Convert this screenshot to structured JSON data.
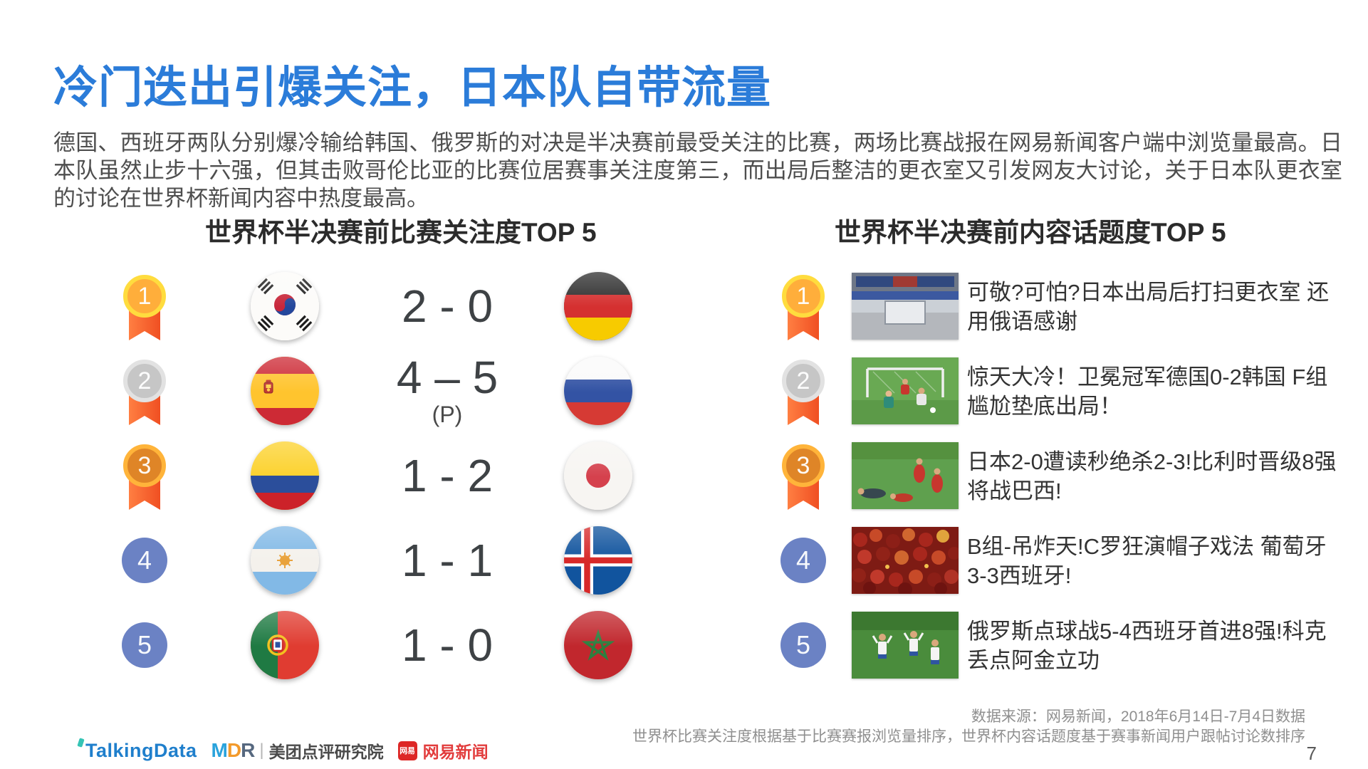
{
  "page": {
    "title": "冷门迭出引爆关注，日本队自带流量",
    "body": "德国、西班牙两队分别爆冷输给韩国、俄罗斯的对决是半决赛前最受关注的比赛，两场比赛战报在网易新闻客户端中浏览量最高。日本队虽然止步十六强，但其击败哥伦比亚的比赛位居赛事关注度第三，而出局后整洁的更衣室又引发网友大讨论，关于日本队更衣室的讨论在世界杯新闻内容中热度最高。",
    "page_number": "7"
  },
  "left_section": {
    "title": "世界杯半决赛前比赛关注度TOP 5",
    "rows": [
      {
        "rank": "1",
        "rank_style": "gold-medal",
        "home_flag": "south-korea-flag",
        "score": "2 - 0",
        "score_note": "",
        "away_flag": "germany-flag"
      },
      {
        "rank": "2",
        "rank_style": "silver-medal",
        "home_flag": "spain-flag",
        "score": "4 – 5",
        "score_note": "(P)",
        "away_flag": "russia-flag"
      },
      {
        "rank": "3",
        "rank_style": "bronze-medal",
        "home_flag": "colombia-flag",
        "score": "1 - 2",
        "score_note": "",
        "away_flag": "japan-flag"
      },
      {
        "rank": "4",
        "rank_style": "blue-circle",
        "home_flag": "argentina-flag",
        "score": "1 - 1",
        "score_note": "",
        "away_flag": "iceland-flag"
      },
      {
        "rank": "5",
        "rank_style": "blue-circle",
        "home_flag": "portugal-flag",
        "score": "1 - 0",
        "score_note": "",
        "away_flag": "morocco-flag"
      }
    ]
  },
  "right_section": {
    "title": "世界杯半决赛前内容话题度TOP 5",
    "rows": [
      {
        "rank": "1",
        "rank_style": "gold-medal",
        "thumb": "locker-room-photo",
        "text": "可敬?可怕?日本出局后打扫更衣室 还用俄语感谢"
      },
      {
        "rank": "2",
        "rank_style": "silver-medal",
        "thumb": "goal-match-photo",
        "text": "惊天大冷！卫冕冠军德国0-2韩国 F组尴尬垫底出局！"
      },
      {
        "rank": "3",
        "rank_style": "bronze-medal",
        "thumb": "players-pitch-photo",
        "text": "日本2-0遭读秒绝杀2-3!比利时晋级8强将战巴西!"
      },
      {
        "rank": "4",
        "rank_style": "blue-circle",
        "thumb": "fans-crowd-photo",
        "text": "B组-吊炸天!C罗狂演帽子戏法 葡萄牙3-3西班牙!"
      },
      {
        "rank": "5",
        "rank_style": "blue-circle",
        "thumb": "team-celebration-photo",
        "text": "俄罗斯点球战5-4西班牙首进8强!科克丢点阿金立功"
      }
    ]
  },
  "footer": {
    "source_line1": "数据来源：网易新闻，2018年6月14日-7月4日数据",
    "source_line2": "世界杯比赛关注度根据基于比赛赛报浏览量排序，世界杯内容话题度基于赛事新闻用户跟帖讨论数排序",
    "logos": {
      "talkingdata": "TalkingData",
      "mdr": "MDR",
      "meituan": "美团点评研究院",
      "netease_badge": "网易",
      "netease": "网易新闻"
    }
  },
  "colors": {
    "accent_blue": "#2B7CD9",
    "rank_blue": "#6B82C4",
    "ribbon_orange": "#F04F22",
    "gold": "#FFAE3B",
    "silver": "#C6C6C6",
    "bronze": "#DF8527",
    "netease_red": "#E23C3C"
  }
}
